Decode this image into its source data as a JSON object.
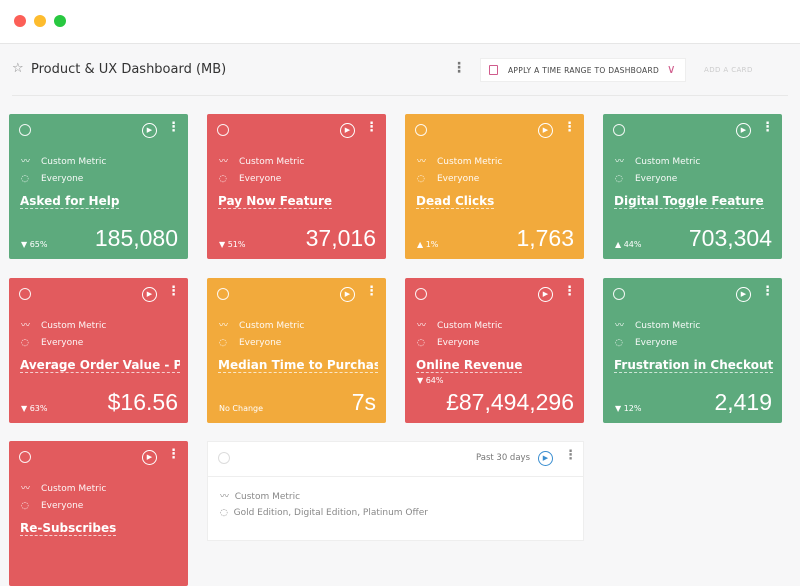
{
  "window": {
    "controls": [
      "close",
      "minimize",
      "maximize"
    ]
  },
  "header": {
    "title": "Product & UX Dashboard (MB)",
    "time_range_button": "APPLY A TIME RANGE TO DASHBOARD",
    "add_card": "ADD A CARD"
  },
  "colors": {
    "green": "#5daa7d",
    "red": "#e25b5e",
    "orange": "#f2aa3c"
  },
  "cards": [
    {
      "type": "Custom Metric",
      "segment": "Everyone",
      "name": "Asked for Help",
      "change": "▼ 65%",
      "value": "185,080",
      "color": "green"
    },
    {
      "type": "Custom Metric",
      "segment": "Everyone",
      "name": "Pay Now Feature",
      "change": "▼ 51%",
      "value": "37,016",
      "color": "red"
    },
    {
      "type": "Custom Metric",
      "segment": "Everyone",
      "name": "Dead Clicks",
      "change": "▲ 1%",
      "value": "1,763",
      "color": "orange"
    },
    {
      "type": "Custom Metric",
      "segment": "Everyone",
      "name": "Digital Toggle Feature",
      "change": "▲ 44%",
      "value": "703,304",
      "color": "green"
    },
    {
      "type": "Custom Metric",
      "segment": "Everyone",
      "name": "Average Order Value - Pas...",
      "change": "▼ 63%",
      "value": "$16.56",
      "color": "red"
    },
    {
      "type": "Custom Metric",
      "segment": "Everyone",
      "name": "Median Time to Purchase",
      "change": "No Change",
      "value": "7s",
      "color": "orange"
    },
    {
      "type": "Custom Metric",
      "segment": "Everyone",
      "name": "Online Revenue",
      "change": "▼ 64%",
      "value": "£87,494,296",
      "color": "red"
    },
    {
      "type": "Custom Metric",
      "segment": "Everyone",
      "name": "Frustration in Checkout",
      "change": "▼ 12%",
      "value": "2,419",
      "color": "green"
    },
    {
      "type": "Custom Metric",
      "segment": "Everyone",
      "name": "Re-Subscribes",
      "change": "",
      "value": "",
      "color": "red"
    }
  ],
  "white_card": {
    "range": "Past 30 days",
    "type": "Custom Metric",
    "segment": "Gold Edition, Digital Edition, Platinum Offer"
  }
}
